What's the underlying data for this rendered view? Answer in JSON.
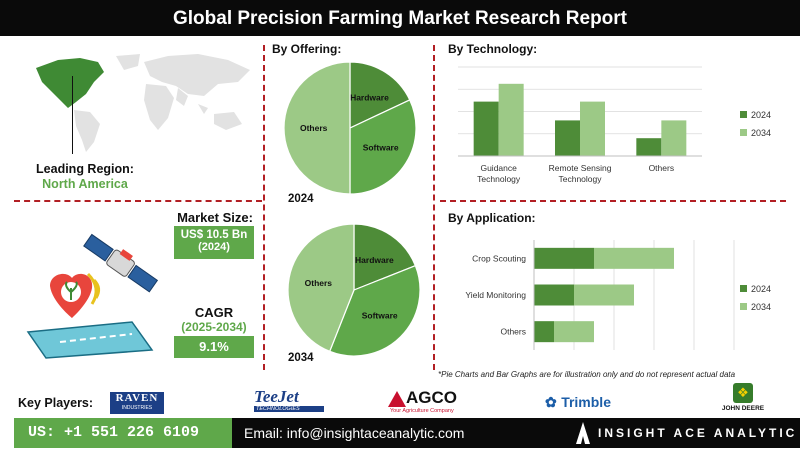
{
  "header": {
    "title": "Global Precision Farming Market Research Report"
  },
  "region": {
    "label": "Leading Region:",
    "value": "North America"
  },
  "market_size": {
    "label": "Market Size:",
    "value": "US$ 10.5 Bn",
    "year": "(2024)"
  },
  "cagr": {
    "label": "CAGR",
    "period": "(2025-2034)",
    "value": "9.1%"
  },
  "offering": {
    "title": "By Offering:",
    "year_2024": "2024",
    "year_2034": "2034"
  },
  "technology": {
    "title": "By Technology:"
  },
  "application": {
    "title": "By Application:"
  },
  "note": "*Pie Charts and Bar Graphs are for illustration only and do not represent actual data",
  "key_players": {
    "label": "Key Players:",
    "logos": [
      "RAVEN",
      "INDUSTRIES",
      "TeeJet",
      "TECHNOLOGIES",
      "AGCO",
      "Your Agriculture Company",
      "Trimble",
      "JOHN DEERE"
    ]
  },
  "footer": {
    "phone": "US: +1 551 226 6109",
    "email": "Email: info@insightaceanalytic.com",
    "brand": "INSIGHT ACE ANALYTIC"
  },
  "colors": {
    "dark_green": "#4e8c38",
    "light_green": "#9cc986",
    "accent_green": "#5fa84a",
    "divider_red": "#b21f24"
  },
  "chart_data": [
    {
      "type": "pie",
      "title": "2024",
      "categories": [
        "Hardware",
        "Software",
        "Others"
      ],
      "values": [
        18,
        32,
        50
      ]
    },
    {
      "type": "pie",
      "title": "2034",
      "categories": [
        "Hardware",
        "Software",
        "Others"
      ],
      "values": [
        19,
        37,
        44
      ]
    },
    {
      "type": "bar",
      "title": "By Technology:",
      "categories": [
        "Guidance Technology",
        "Remote Sensing Technology",
        "Others"
      ],
      "series": [
        {
          "name": "2024",
          "values": [
            5.5,
            3.6,
            1.8
          ]
        },
        {
          "name": "2034",
          "values": [
            7.3,
            5.5,
            3.6
          ]
        }
      ],
      "ylim": [
        0,
        9
      ],
      "grid": true,
      "legend": "right"
    },
    {
      "type": "bar",
      "orientation": "horizontal",
      "stacked": true,
      "title": "By Application:",
      "categories": [
        "Crop Scouting",
        "Yield Monitoring",
        "Others"
      ],
      "series": [
        {
          "name": "2024",
          "values": [
            3,
            2,
            1
          ]
        },
        {
          "name": "2034",
          "values": [
            4,
            3,
            2
          ]
        }
      ],
      "xlim": [
        0,
        10
      ],
      "grid": true,
      "legend": "right"
    }
  ]
}
